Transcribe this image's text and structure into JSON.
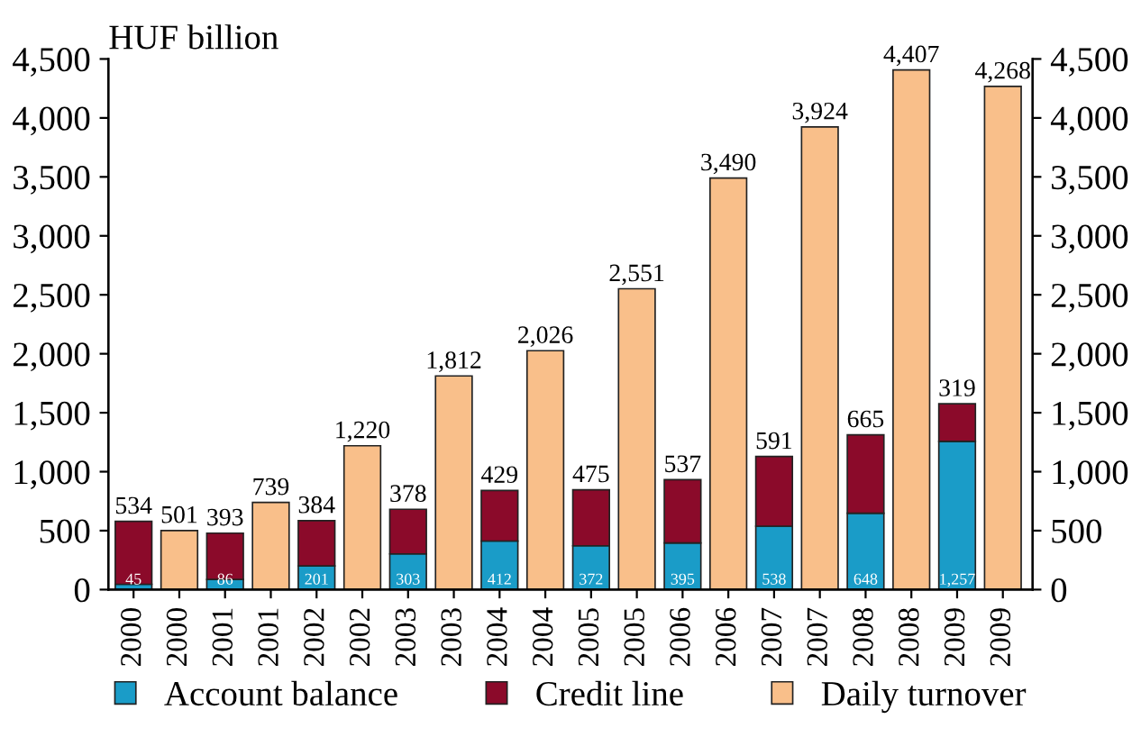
{
  "chart_data": {
    "type": "bar",
    "stacked": true,
    "ylabel": "HUF billion",
    "categories": [
      "2000",
      "2000",
      "2001",
      "2001",
      "2002",
      "2002",
      "2003",
      "2003",
      "2004",
      "2004",
      "2005",
      "2005",
      "2006",
      "2006",
      "2007",
      "2007",
      "2008",
      "2008",
      "2009",
      "2009"
    ],
    "series": [
      {
        "name": "Account balance",
        "color": "#1a9cc8",
        "values": [
          45,
          null,
          86,
          null,
          201,
          null,
          303,
          null,
          412,
          null,
          372,
          null,
          395,
          null,
          538,
          null,
          648,
          null,
          1257,
          null
        ],
        "value_labels": [
          "45",
          null,
          "86",
          null,
          "201",
          null,
          "303",
          null,
          "412",
          null,
          "372",
          null,
          "395",
          null,
          "538",
          null,
          "648",
          null,
          "1,257",
          null
        ]
      },
      {
        "name": "Credit line",
        "color": "#8b0a2a",
        "values": [
          534,
          null,
          393,
          null,
          384,
          null,
          378,
          null,
          429,
          null,
          475,
          null,
          537,
          null,
          591,
          null,
          665,
          null,
          319,
          null
        ],
        "value_labels": [
          "534",
          null,
          "393",
          null,
          "384",
          null,
          "378",
          null,
          "429",
          null,
          "475",
          null,
          "537",
          null,
          "591",
          null,
          "665",
          null,
          "319",
          null
        ]
      },
      {
        "name": "Daily turnover",
        "color": "#f9bf8a",
        "values": [
          null,
          501,
          null,
          739,
          null,
          1220,
          null,
          1812,
          null,
          2026,
          null,
          2551,
          null,
          3490,
          null,
          3924,
          null,
          4407,
          null,
          4268
        ],
        "value_labels": [
          null,
          "501",
          null,
          "739",
          null,
          "1,220",
          null,
          "1,812",
          null,
          "2,026",
          null,
          "2,551",
          null,
          "3,490",
          null,
          "3,924",
          null,
          "4,407",
          null,
          "4,268"
        ]
      }
    ],
    "ylim": [
      0,
      4500
    ],
    "yticks": [
      {
        "value": 0,
        "label": "0"
      },
      {
        "value": 500,
        "label": "500"
      },
      {
        "value": 1000,
        "label": "1,000"
      },
      {
        "value": 1500,
        "label": "1,500"
      },
      {
        "value": 2000,
        "label": "2,000"
      },
      {
        "value": 2500,
        "label": "2,500"
      },
      {
        "value": 3000,
        "label": "3,000"
      },
      {
        "value": 3500,
        "label": "3,500"
      },
      {
        "value": 4000,
        "label": "4,000"
      },
      {
        "value": 4500,
        "label": "4,500"
      }
    ],
    "y2lim": [
      0,
      4500
    ],
    "y2ticks": [
      {
        "value": 0,
        "label": "0"
      },
      {
        "value": 500,
        "label": "500"
      },
      {
        "value": 1000,
        "label": "1,000"
      },
      {
        "value": 1500,
        "label": "1,500"
      },
      {
        "value": 2000,
        "label": "2,000"
      },
      {
        "value": 2500,
        "label": "2,500"
      },
      {
        "value": 3000,
        "label": "3,000"
      },
      {
        "value": 3500,
        "label": "3,500"
      },
      {
        "value": 4000,
        "label": "4,000"
      },
      {
        "value": 4500,
        "label": "4,500"
      }
    ],
    "grid": false,
    "legend": "bottom"
  }
}
